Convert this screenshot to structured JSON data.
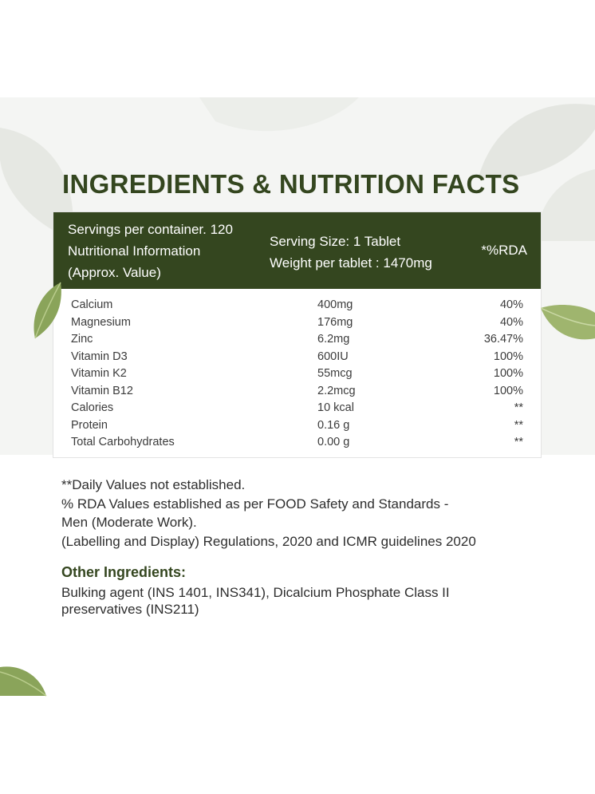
{
  "title": "INGREDIENTS & NUTRITION FACTS",
  "table": {
    "header_left": [
      "Servings per container. 120",
      "Nutritional Information",
      "(Approx. Value)"
    ],
    "header_middle": [
      "Serving Size: 1 Tablet",
      "Weight per tablet : 1470mg"
    ],
    "header_right": "*%RDA",
    "rows": [
      {
        "name": "Calcium",
        "amount": "400mg",
        "rda": "40%"
      },
      {
        "name": "Magnesium",
        "amount": "176mg",
        "rda": "40%"
      },
      {
        "name": "Zinc",
        "amount": "6.2mg",
        "rda": "36.47%"
      },
      {
        "name": "Vitamin D3",
        "amount": "600IU",
        "rda": "100%"
      },
      {
        "name": "Vitamin K2",
        "amount": "55mcg",
        "rda": "100%"
      },
      {
        "name": "Vitamin B12",
        "amount": "2.2mcg",
        "rda": "100%"
      },
      {
        "name": "Calories",
        "amount": "10 kcal",
        "rda": "**"
      },
      {
        "name": "Protein",
        "amount": "0.16 g",
        "rda": "**"
      },
      {
        "name": "Total Carbohydrates",
        "amount": "0.00 g",
        "rda": "**"
      }
    ]
  },
  "notes": [
    "**Daily Values not established.",
    "% RDA Values established as per FOOD Safety and Standards -",
    "Men (Moderate Work).",
    "(Labelling and Display) Regulations, 2020 and ICMR guidelines 2020"
  ],
  "other_ingredients": {
    "title": "Other Ingredients:",
    "lines": [
      "Bulking agent (INS 1401, INS341), Dicalcium Phosphate Class II",
      "preservatives (INS211)"
    ]
  },
  "colors": {
    "primary_green": "#34461f",
    "band_gray": "#f4f5f3",
    "leaf_green": "#8aa45a"
  },
  "icons": [
    "decorative-leaf-icon"
  ]
}
